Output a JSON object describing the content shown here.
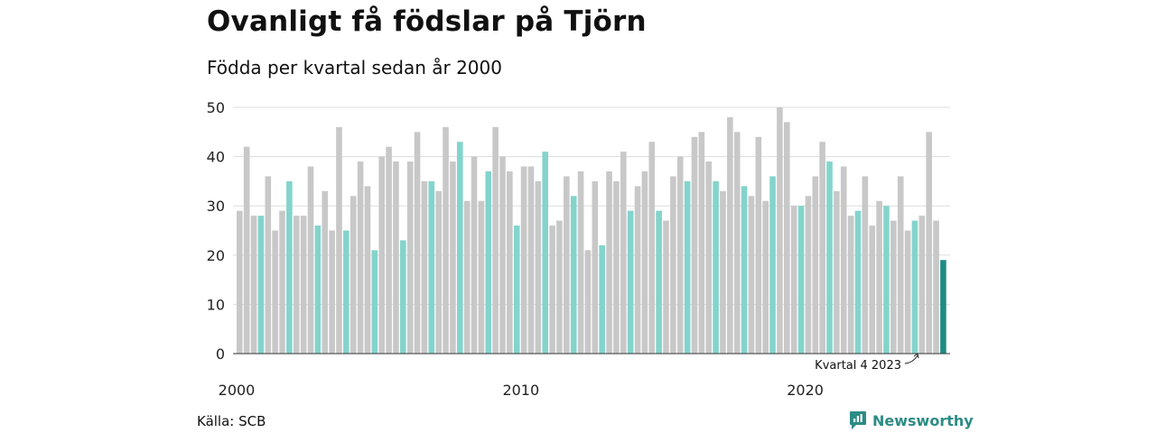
{
  "header": {
    "title": "Ovanligt få födslar på Tjörn",
    "subtitle": "Födda per kvartal sedan år 2000"
  },
  "footer": {
    "source": "Källa: SCB",
    "brand": "Newsworthy"
  },
  "colors": {
    "default_bar": "#c8c8c8",
    "q4_bar": "#83d4cc",
    "latest_bar": "#1e8c84",
    "grid": "#dddddd",
    "axis": "#333333",
    "brand": "#2c8c84"
  },
  "chart_data": {
    "type": "bar",
    "title": "Ovanligt få födslar på Tjörn",
    "subtitle": "Födda per kvartal sedan år 2000",
    "xlabel": "",
    "ylabel": "",
    "ylim": [
      0,
      50
    ],
    "yticks": [
      0,
      10,
      20,
      30,
      40,
      50
    ],
    "xticks": [
      "2000",
      "2010",
      "2020"
    ],
    "grid": true,
    "start_period": "2000 Q1",
    "highlight": "Q4",
    "values": [
      29,
      42,
      28,
      28,
      36,
      25,
      29,
      35,
      28,
      28,
      38,
      26,
      33,
      25,
      46,
      25,
      32,
      39,
      34,
      21,
      40,
      42,
      39,
      23,
      39,
      45,
      35,
      35,
      33,
      46,
      39,
      43,
      31,
      40,
      31,
      37,
      46,
      40,
      37,
      26,
      38,
      38,
      35,
      41,
      26,
      27,
      36,
      32,
      37,
      21,
      35,
      22,
      37,
      35,
      41,
      29,
      34,
      37,
      43,
      29,
      27,
      36,
      40,
      35,
      44,
      45,
      39,
      35,
      33,
      48,
      45,
      34,
      32,
      44,
      31,
      36,
      50,
      47,
      30,
      30,
      32,
      36,
      43,
      39,
      33,
      38,
      28,
      29,
      36,
      26,
      31,
      30,
      27,
      36,
      25,
      27,
      28,
      45,
      27,
      19
    ],
    "annotation": {
      "text": "Kvartal 4 2023",
      "target": "2023 Q4"
    }
  }
}
